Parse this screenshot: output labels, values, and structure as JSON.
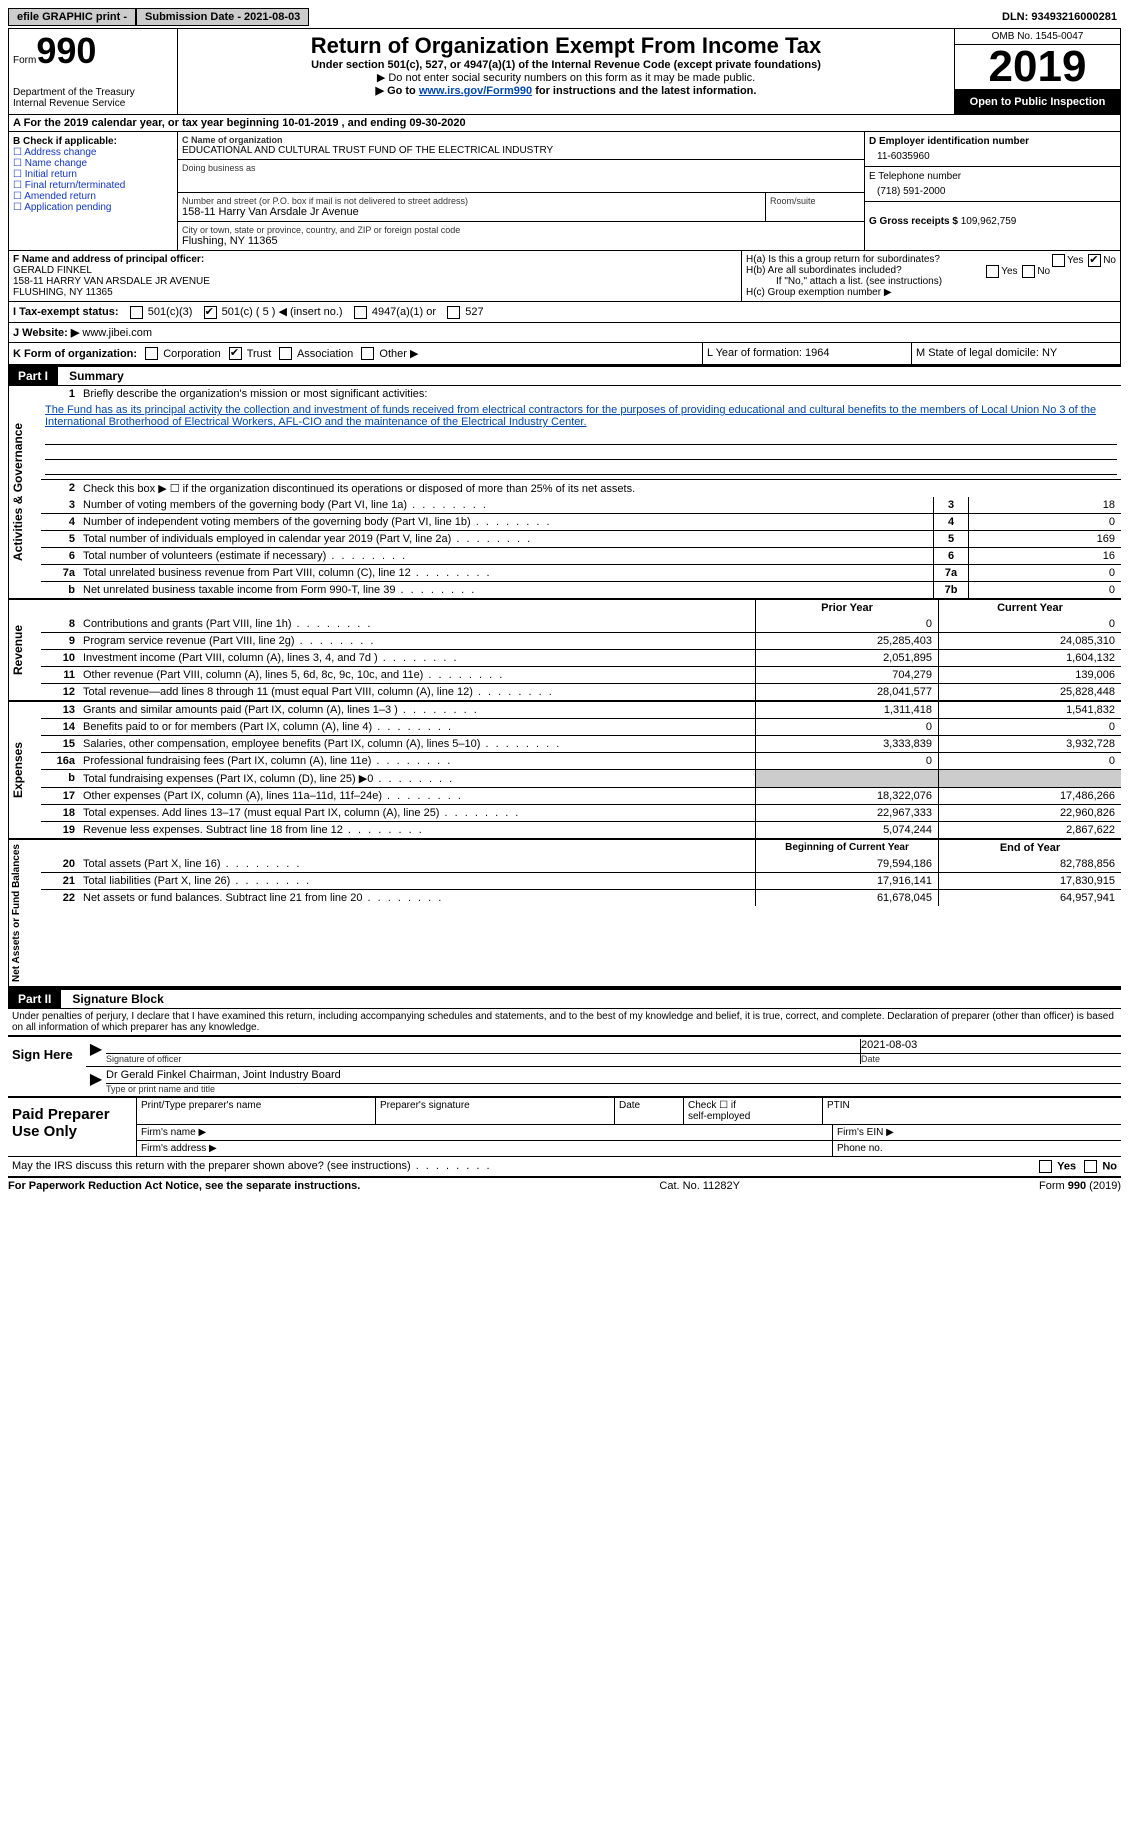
{
  "topbar": {
    "efile_label": "efile GRAPHIC print - ",
    "submission_label": "Submission Date - 2021-08-03",
    "dln_label": "DLN: 93493216000281"
  },
  "header": {
    "form_label": "Form",
    "form_number": "990",
    "dept": "Department of the Treasury",
    "irs": "Internal Revenue Service",
    "title": "Return of Organization Exempt From Income Tax",
    "subtitle": "Under section 501(c), 527, or 4947(a)(1) of the Internal Revenue Code (except private foundations)",
    "note1": "Do not enter social security numbers on this form as it may be made public.",
    "note2_pre": "Go to ",
    "note2_link": "www.irs.gov/Form990",
    "note2_post": " for instructions and the latest information.",
    "omb": "OMB No. 1545-0047",
    "year": "2019",
    "open": "Open to Public Inspection"
  },
  "row_a": "For the 2019 calendar year, or tax year beginning 10-01-2019     , and ending 09-30-2020",
  "section_b": {
    "header": "B Check if applicable:",
    "opts": [
      "Address change",
      "Name change",
      "Initial return",
      "Final return/terminated",
      "Amended return",
      "Application pending"
    ]
  },
  "section_c": {
    "label_c": "C Name of organization",
    "org_name": "EDUCATIONAL AND CULTURAL TRUST FUND OF THE ELECTRICAL INDUSTRY",
    "dba_label": "Doing business as",
    "addr_label": "Number and street (or P.O. box if mail is not delivered to street address)",
    "room_label": "Room/suite",
    "addr": "158-11 Harry Van Arsdale Jr Avenue",
    "city_label": "City or town, state or province, country, and ZIP or foreign postal code",
    "city": "Flushing, NY  11365"
  },
  "section_d": {
    "ein_label": "D Employer identification number",
    "ein": "11-6035960",
    "phone_label": "E Telephone number",
    "phone": "(718) 591-2000",
    "gross_label": "G Gross receipts $",
    "gross": "109,962,759"
  },
  "row_f": {
    "label": "F Name and address of principal officer:",
    "name": "GERALD FINKEL",
    "addr": "158-11 HARRY VAN ARSDALE JR AVENUE",
    "city": "FLUSHING, NY  11365"
  },
  "row_h": {
    "ha": "H(a)  Is this a group return for subordinates?",
    "hb": "H(b)  Are all subordinates included?",
    "hb_note": "If \"No,\" attach a list. (see instructions)",
    "hc": "H(c)  Group exemption number ▶"
  },
  "row_i": {
    "label": "I   Tax-exempt status:",
    "opt1": "501(c)(3)",
    "opt2": "501(c) ( 5 ) ◀ (insert no.)",
    "opt3": "4947(a)(1) or",
    "opt4": "527"
  },
  "row_j": {
    "label": "J   Website: ▶",
    "value": "www.jibei.com"
  },
  "row_k": {
    "label": "K Form of organization:",
    "opts": [
      "Corporation",
      "Trust",
      "Association",
      "Other ▶"
    ],
    "l": "L Year of formation: 1964",
    "m": "M State of legal domicile: NY"
  },
  "part1": {
    "tag": "Part I",
    "title": "Summary"
  },
  "gov": {
    "label": "Activities & Governance",
    "l1_label": "Briefly describe the organization's mission or most significant activities:",
    "l1_text": "The Fund has as its principal activity the collection and investment of funds received from electrical contractors for the purposes of providing educational and cultural benefits to the members of Local Union No 3 of the International Brotherhood of Electrical Workers, AFL-CIO and the maintenance of the Electrical Industry Center.",
    "l2": "Check this box ▶ ☐  if the organization discontinued its operations or disposed of more than 25% of its net assets.",
    "lines": [
      {
        "n": "3",
        "d": "Number of voting members of the governing body (Part VI, line 1a)",
        "box": "3",
        "v": "18"
      },
      {
        "n": "4",
        "d": "Number of independent voting members of the governing body (Part VI, line 1b)",
        "box": "4",
        "v": "0"
      },
      {
        "n": "5",
        "d": "Total number of individuals employed in calendar year 2019 (Part V, line 2a)",
        "box": "5",
        "v": "169"
      },
      {
        "n": "6",
        "d": "Total number of volunteers (estimate if necessary)",
        "box": "6",
        "v": "16"
      },
      {
        "n": "7a",
        "d": "Total unrelated business revenue from Part VIII, column (C), line 12",
        "box": "7a",
        "v": "0"
      },
      {
        "n": "b",
        "d": "Net unrelated business taxable income from Form 990-T, line 39",
        "box": "7b",
        "v": "0"
      }
    ]
  },
  "rev": {
    "label": "Revenue",
    "head_prior": "Prior Year",
    "head_curr": "Current Year",
    "lines": [
      {
        "n": "8",
        "d": "Contributions and grants (Part VIII, line 1h)",
        "p": "0",
        "c": "0"
      },
      {
        "n": "9",
        "d": "Program service revenue (Part VIII, line 2g)",
        "p": "25,285,403",
        "c": "24,085,310"
      },
      {
        "n": "10",
        "d": "Investment income (Part VIII, column (A), lines 3, 4, and 7d )",
        "p": "2,051,895",
        "c": "1,604,132"
      },
      {
        "n": "11",
        "d": "Other revenue (Part VIII, column (A), lines 5, 6d, 8c, 9c, 10c, and 11e)",
        "p": "704,279",
        "c": "139,006"
      },
      {
        "n": "12",
        "d": "Total revenue—add lines 8 through 11 (must equal Part VIII, column (A), line 12)",
        "p": "28,041,577",
        "c": "25,828,448"
      }
    ]
  },
  "exp": {
    "label": "Expenses",
    "lines": [
      {
        "n": "13",
        "d": "Grants and similar amounts paid (Part IX, column (A), lines 1–3 )",
        "p": "1,311,418",
        "c": "1,541,832"
      },
      {
        "n": "14",
        "d": "Benefits paid to or for members (Part IX, column (A), line 4)",
        "p": "0",
        "c": "0"
      },
      {
        "n": "15",
        "d": "Salaries, other compensation, employee benefits (Part IX, column (A), lines 5–10)",
        "p": "3,333,839",
        "c": "3,932,728"
      },
      {
        "n": "16a",
        "d": "Professional fundraising fees (Part IX, column (A), line 11e)",
        "p": "0",
        "c": "0"
      },
      {
        "n": "b",
        "d": "Total fundraising expenses (Part IX, column (D), line 25) ▶0",
        "p": "shaded",
        "c": "shaded"
      },
      {
        "n": "17",
        "d": "Other expenses (Part IX, column (A), lines 11a–11d, 11f–24e)",
        "p": "18,322,076",
        "c": "17,486,266"
      },
      {
        "n": "18",
        "d": "Total expenses. Add lines 13–17 (must equal Part IX, column (A), line 25)",
        "p": "22,967,333",
        "c": "22,960,826"
      },
      {
        "n": "19",
        "d": "Revenue less expenses. Subtract line 18 from line 12",
        "p": "5,074,244",
        "c": "2,867,622"
      }
    ]
  },
  "net": {
    "label": "Net Assets or Fund Balances",
    "head_prior": "Beginning of Current Year",
    "head_curr": "End of Year",
    "lines": [
      {
        "n": "20",
        "d": "Total assets (Part X, line 16)",
        "p": "79,594,186",
        "c": "82,788,856"
      },
      {
        "n": "21",
        "d": "Total liabilities (Part X, line 26)",
        "p": "17,916,141",
        "c": "17,830,915"
      },
      {
        "n": "22",
        "d": "Net assets or fund balances. Subtract line 21 from line 20",
        "p": "61,678,045",
        "c": "64,957,941"
      }
    ]
  },
  "part2": {
    "tag": "Part II",
    "title": "Signature Block",
    "declaration": "Under penalties of perjury, I declare that I have examined this return, including accompanying schedules and statements, and to the best of my knowledge and belief, it is true, correct, and complete. Declaration of preparer (other than officer) is based on all information of which preparer has any knowledge."
  },
  "sign": {
    "label": "Sign Here",
    "sig_officer": "Signature of officer",
    "date": "2021-08-03",
    "date_label": "Date",
    "name": "Dr Gerald Finkel  Chairman, Joint Industry Board",
    "name_label": "Type or print name and title"
  },
  "prep": {
    "label": "Paid Preparer Use Only",
    "h1": "Print/Type preparer's name",
    "h2": "Preparer's signature",
    "h3": "Date",
    "h4_a": "Check ☐ if",
    "h4_b": "self-employed",
    "h5": "PTIN",
    "firm_name": "Firm's name   ▶",
    "firm_ein": "Firm's EIN ▶",
    "firm_addr": "Firm's address ▶",
    "phone": "Phone no."
  },
  "discuss": "May the IRS discuss this return with the preparer shown above? (see instructions)",
  "footer": {
    "left": "For Paperwork Reduction Act Notice, see the separate instructions.",
    "mid": "Cat. No. 11282Y",
    "right": "Form 990 (2019)"
  }
}
